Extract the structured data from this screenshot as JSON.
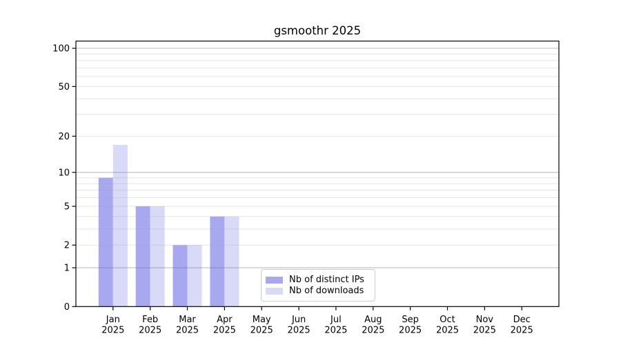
{
  "chart_data": {
    "type": "bar",
    "title": "gsmoothr 2025",
    "categories": [
      "Jan",
      "Feb",
      "Mar",
      "Apr",
      "May",
      "Jun",
      "Jul",
      "Aug",
      "Sep",
      "Oct",
      "Nov",
      "Dec"
    ],
    "category_year": "2025",
    "series": [
      {
        "name": "Nb of distinct IPs",
        "color": "#a8a8f1",
        "values": [
          9,
          5,
          2,
          4,
          0,
          0,
          0,
          0,
          0,
          0,
          0,
          0
        ]
      },
      {
        "name": "Nb of downloads",
        "color": "#d9d9f8",
        "values": [
          17,
          5,
          2,
          4,
          0,
          0,
          0,
          0,
          0,
          0,
          0,
          0
        ]
      }
    ],
    "yscale": "log1p",
    "ylim": [
      0,
      100
    ],
    "yticks": [
      0,
      1,
      2,
      5,
      10,
      20,
      50,
      100
    ],
    "minor_grid_values": [
      2,
      3,
      4,
      5,
      6,
      7,
      8,
      9,
      20,
      30,
      40,
      50,
      60,
      70,
      80,
      90
    ],
    "major_grid_values": [
      1,
      10,
      100
    ],
    "grid": "both",
    "xlabel": "",
    "ylabel": "",
    "legend_position": "lower-center"
  },
  "colors": {
    "axis": "#000000",
    "major_grid": "#c2c2c2",
    "minor_grid": "#ececec",
    "legend_border": "#cccccc",
    "background": "#ffffff"
  }
}
